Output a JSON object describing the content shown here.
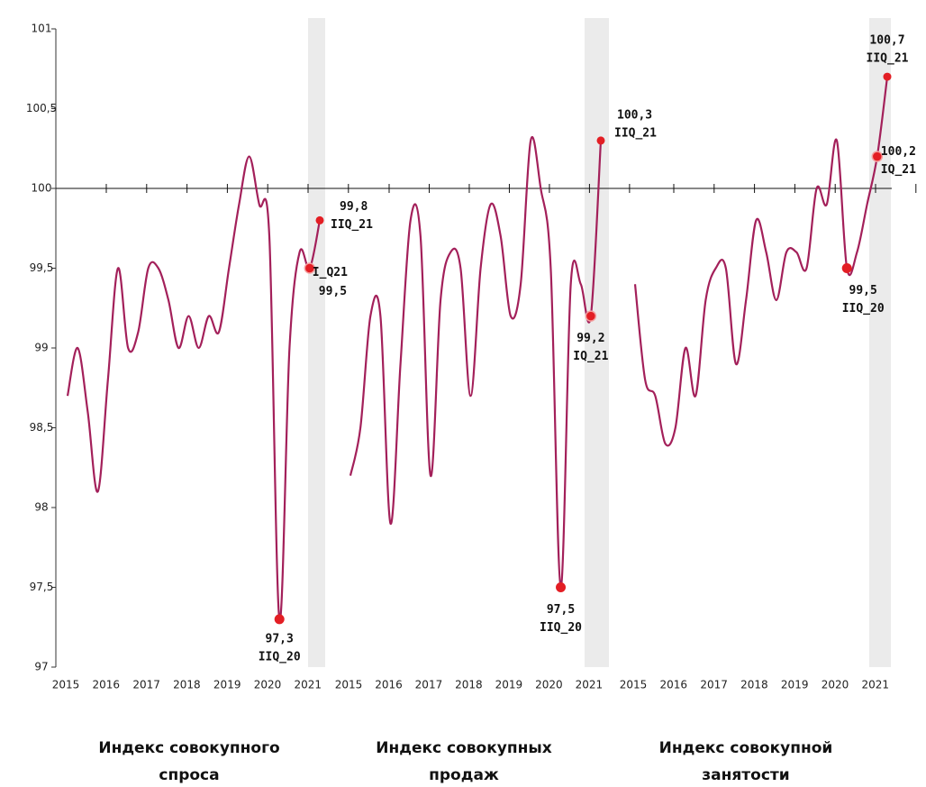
{
  "chart_data": {
    "type": "line",
    "ylim": [
      97,
      101
    ],
    "yticks": [
      97,
      {
        "value": 97.5,
        "label": "97,5"
      },
      98,
      {
        "value": 98.5,
        "label": "98,5"
      },
      99,
      {
        "value": 99.5,
        "label": "99,5"
      },
      100,
      {
        "value": 100.5,
        "label": "100,5"
      },
      101
    ],
    "series": [
      {
        "name": "Индекс совокупного спроса",
        "color": "#a3205a",
        "marker_color": "#e31e24",
        "categories": [
          "2015",
          "2016",
          "2017",
          "2018",
          "2019",
          "2020",
          "2021"
        ],
        "values": [
          98.7,
          99.0,
          98.6,
          98.1,
          98.8,
          99.5,
          99.0,
          99.1,
          99.5,
          99.5,
          99.3,
          99.0,
          99.2,
          99.0,
          99.2,
          99.1,
          99.5,
          99.9,
          100.2,
          99.9,
          99.7,
          97.3,
          99.0,
          99.6,
          99.5,
          99.8
        ],
        "value_labels": [
          null,
          null,
          null,
          null,
          null,
          null,
          null,
          null,
          null,
          null,
          null,
          null,
          null,
          null,
          null,
          null,
          null,
          null,
          null,
          null,
          null,
          "97,3",
          null,
          null,
          "99,5",
          "99,8"
        ],
        "point_labels": [
          null,
          null,
          null,
          null,
          null,
          null,
          null,
          null,
          null,
          null,
          null,
          null,
          null,
          null,
          null,
          null,
          null,
          null,
          null,
          null,
          null,
          "IIQ_20",
          null,
          null,
          "I_Q21",
          "IIQ_21"
        ]
      },
      {
        "name": "Индекс совокупных продаж",
        "color": "#a3205a",
        "marker_color": "#e31e24",
        "categories": [
          "2015",
          "2016",
          "2017",
          "2018",
          "2019",
          "2020",
          "2021"
        ],
        "values": [
          98.2,
          98.5,
          99.2,
          99.2,
          97.9,
          98.9,
          99.8,
          99.7,
          98.2,
          99.3,
          99.6,
          99.5,
          98.7,
          99.5,
          99.9,
          99.7,
          99.2,
          99.4,
          100.3,
          100.0,
          99.5,
          97.5,
          99.4,
          99.4,
          99.2,
          100.3
        ],
        "value_labels": [
          null,
          null,
          null,
          null,
          null,
          null,
          null,
          null,
          null,
          null,
          null,
          null,
          null,
          null,
          null,
          null,
          null,
          null,
          null,
          null,
          null,
          "97,5",
          null,
          null,
          "99,2",
          "100,3"
        ],
        "point_labels": [
          null,
          null,
          null,
          null,
          null,
          null,
          null,
          null,
          null,
          null,
          null,
          null,
          null,
          null,
          null,
          null,
          null,
          null,
          null,
          null,
          null,
          "IIQ_20",
          null,
          null,
          "IQ_21",
          "IIQ_21"
        ]
      },
      {
        "name": "Индекс совокупной занятости",
        "color": "#a3205a",
        "marker_color": "#e31e24",
        "categories": [
          "2015",
          "2016",
          "2017",
          "2018",
          "2019",
          "2020",
          "2021"
        ],
        "values": [
          99.4,
          98.8,
          98.7,
          98.4,
          98.5,
          99.0,
          98.7,
          99.3,
          99.5,
          99.5,
          98.9,
          99.3,
          99.8,
          99.6,
          99.3,
          99.6,
          99.6,
          99.5,
          100.0,
          99.9,
          100.3,
          99.5,
          99.6,
          99.9,
          100.2,
          100.7
        ],
        "value_labels": [
          null,
          null,
          null,
          null,
          null,
          null,
          null,
          null,
          null,
          null,
          null,
          null,
          null,
          null,
          null,
          null,
          null,
          null,
          null,
          null,
          null,
          "99,5",
          null,
          null,
          "100,2",
          "100,7"
        ],
        "point_labels": [
          null,
          null,
          null,
          null,
          null,
          null,
          null,
          null,
          null,
          null,
          null,
          null,
          null,
          null,
          null,
          null,
          null,
          null,
          null,
          null,
          null,
          "IIQ_20",
          null,
          null,
          "IQ_21",
          "IIQ_21"
        ]
      }
    ]
  }
}
